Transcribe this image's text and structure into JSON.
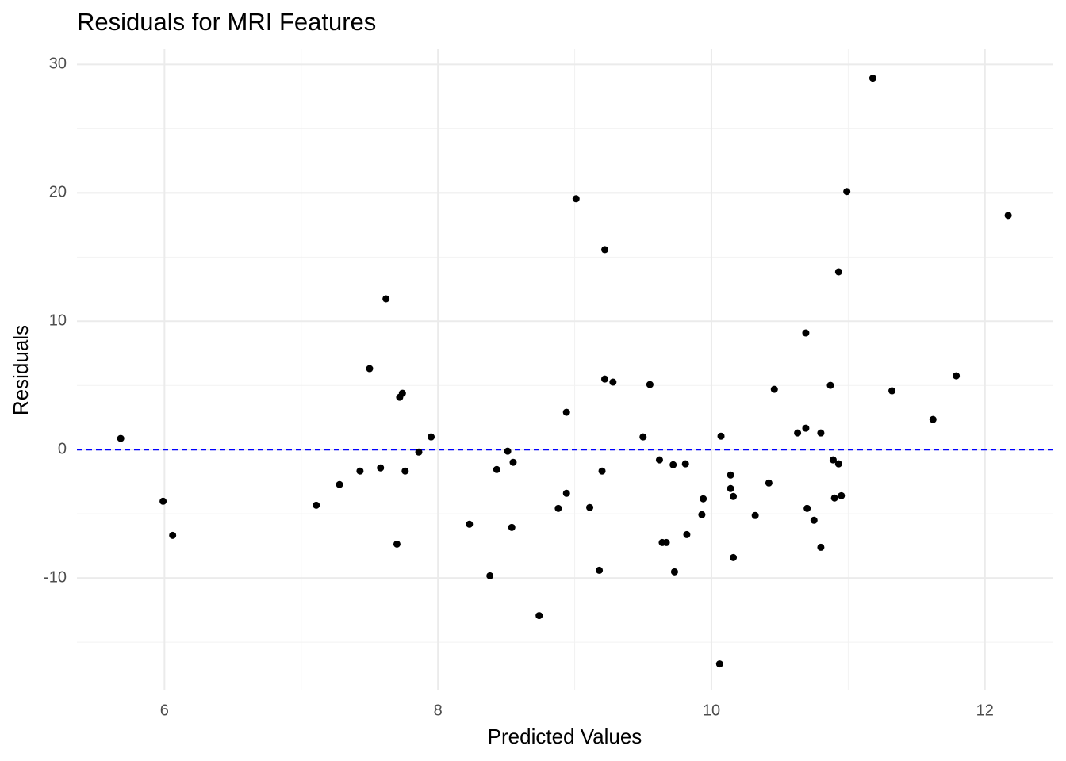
{
  "chart_data": {
    "type": "scatter",
    "title": "Residuals for MRI Features",
    "x_label": "Predicted Values",
    "y_label": "Residuals",
    "xlim": [
      5.36,
      12.5
    ],
    "ylim": [
      -18.7,
      31.2
    ],
    "xticks": [
      6,
      8,
      10,
      12
    ],
    "yticks": [
      -10,
      0,
      10,
      20,
      30
    ],
    "minor_xticks": [
      7,
      9,
      11
    ],
    "minor_yticks": [
      -15,
      -5,
      5,
      15,
      25
    ],
    "grid": true,
    "color": "#000000",
    "hline": {
      "y": 0,
      "color": "#0000ff",
      "style": "dashed"
    },
    "x": [
      5.68,
      5.99,
      6.06,
      7.11,
      7.28,
      7.43,
      7.5,
      7.58,
      7.62,
      7.7,
      7.72,
      7.74,
      7.76,
      7.86,
      7.95,
      8.23,
      8.38,
      8.43,
      8.51,
      8.55,
      8.54,
      8.74,
      8.88,
      8.94,
      8.94,
      9.01,
      9.11,
      9.18,
      9.2,
      9.22,
      9.22,
      9.28,
      9.5,
      9.55,
      9.62,
      9.64,
      9.67,
      9.72,
      9.73,
      9.81,
      9.82,
      9.93,
      9.94,
      10.06,
      10.07,
      10.14,
      10.14,
      10.16,
      10.16,
      10.32,
      10.42,
      10.46,
      10.63,
      10.69,
      10.69,
      10.7,
      10.75,
      10.8,
      10.8,
      10.87,
      10.89,
      10.9,
      10.93,
      10.93,
      10.95,
      10.99,
      11.18,
      11.32,
      11.62,
      11.79,
      12.17
    ],
    "values": [
      0.87,
      -4.02,
      -6.68,
      -4.33,
      -2.72,
      -1.67,
      6.31,
      -1.42,
      11.75,
      -7.36,
      4.08,
      4.39,
      -1.67,
      -0.19,
      0.99,
      -5.81,
      -9.83,
      -1.55,
      -0.12,
      -0.99,
      -6.06,
      -12.93,
      -4.58,
      2.91,
      -3.4,
      19.54,
      -4.51,
      -9.4,
      -1.67,
      15.58,
      5.5,
      5.26,
      0.99,
      5.07,
      -0.8,
      -7.24,
      -7.24,
      -1.18,
      -9.52,
      -1.11,
      -6.62,
      -5.07,
      -3.83,
      -16.7,
      1.05,
      -1.98,
      -3.03,
      -3.65,
      -8.41,
      -5.13,
      -2.6,
      4.7,
      1.3,
      9.09,
      1.67,
      -4.58,
      -5.5,
      1.3,
      -7.61,
      5.01,
      -0.8,
      -3.77,
      -1.11,
      13.85,
      -3.59,
      20.1,
      28.94,
      4.58,
      2.35,
      5.75,
      18.24
    ]
  }
}
